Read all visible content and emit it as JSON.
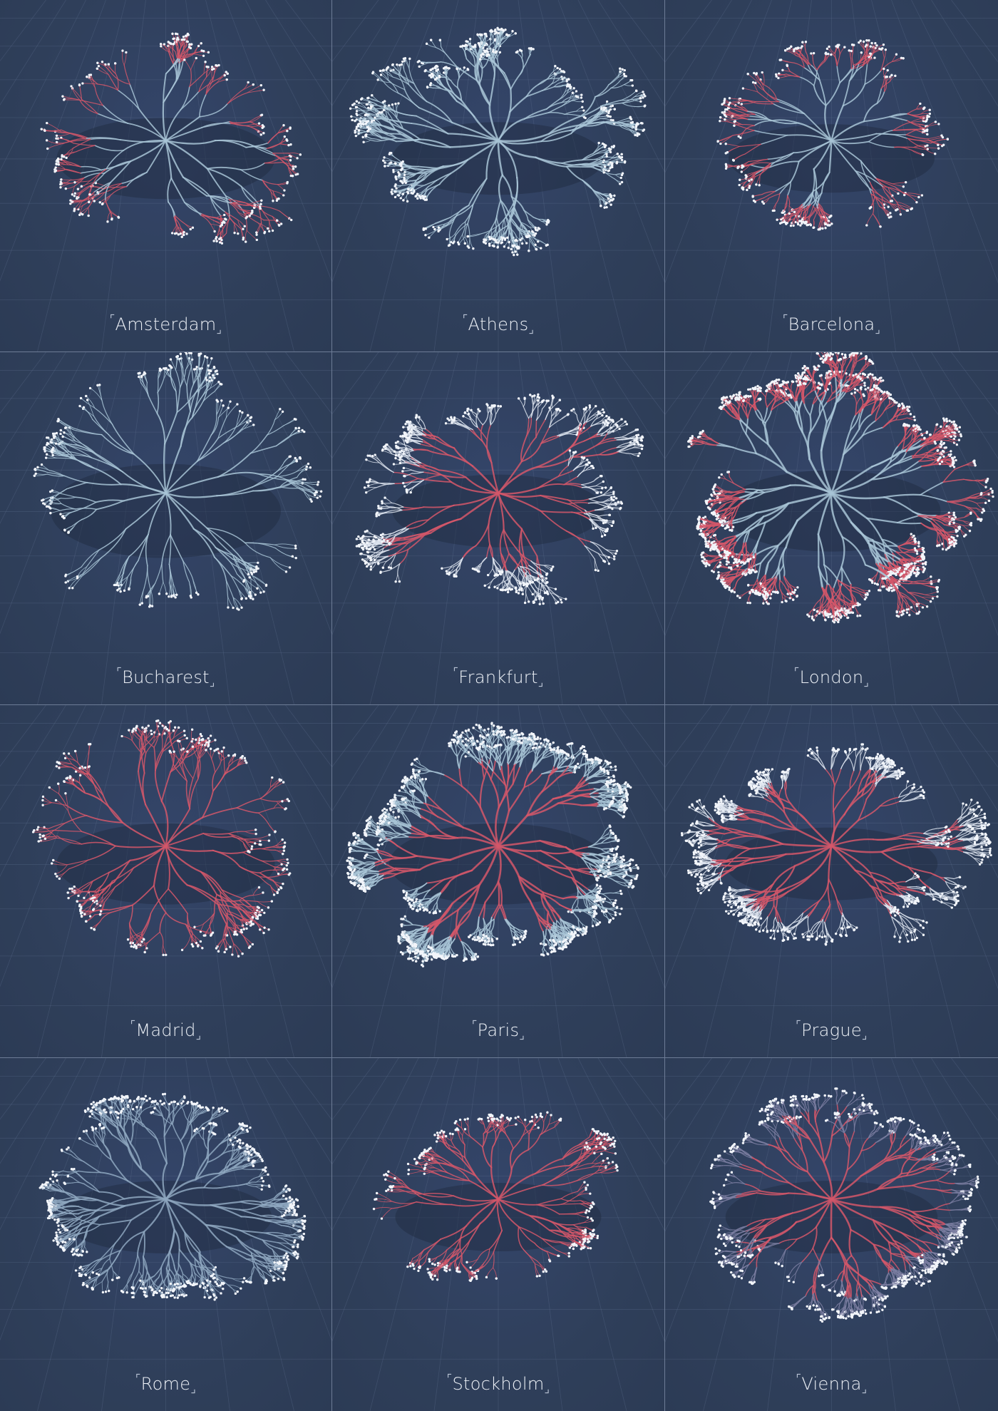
{
  "cities": [
    {
      "name": "Amsterdam",
      "pattern": "clusters",
      "colors": {
        "primary": "#d4576a",
        "secondary": "#a8c4d6"
      }
    },
    {
      "name": "Athens",
      "pattern": "wide",
      "colors": {
        "primary": "#a8c4d6",
        "secondary": "#a8c4d6"
      }
    },
    {
      "name": "Barcelona",
      "pattern": "coastal",
      "colors": {
        "primary": "#d4576a",
        "secondary": "#a8c4d6"
      }
    },
    {
      "name": "Bucharest",
      "pattern": "sparse",
      "colors": {
        "primary": "#a8c4d6",
        "secondary": "#a8c4d6"
      }
    },
    {
      "name": "Frankfurt",
      "pattern": "wide",
      "colors": {
        "primary": "#dde4ee",
        "secondary": "#d4576a"
      }
    },
    {
      "name": "London",
      "pattern": "dense",
      "colors": {
        "primary": "#d4576a",
        "secondary": "#a8c4d6"
      }
    },
    {
      "name": "Madrid",
      "pattern": "clusters",
      "colors": {
        "primary": "#d4576a",
        "secondary": "#d4576a"
      }
    },
    {
      "name": "Paris",
      "pattern": "dense",
      "colors": {
        "primary": "#a8c4d6",
        "secondary": "#d4576a"
      }
    },
    {
      "name": "Prague",
      "pattern": "wide",
      "colors": {
        "primary": "#dde4ee",
        "secondary": "#d4576a"
      }
    },
    {
      "name": "Rome",
      "pattern": "wide",
      "colors": {
        "primary": "#8ea7c0",
        "secondary": "#8ea7c0"
      }
    },
    {
      "name": "Stockholm",
      "pattern": "coastal",
      "colors": {
        "primary": "#d4576a",
        "secondary": "#d4576a"
      }
    },
    {
      "name": "Vienna",
      "pattern": "wide",
      "colors": {
        "primary": "#7d7fa2",
        "secondary": "#d4576a"
      }
    }
  ],
  "style": {
    "background": "#2f3f5a",
    "divider": "#6d7c96",
    "label_color": "#eef2f8",
    "bracket_open": "⌜",
    "bracket_close": "⌟"
  }
}
